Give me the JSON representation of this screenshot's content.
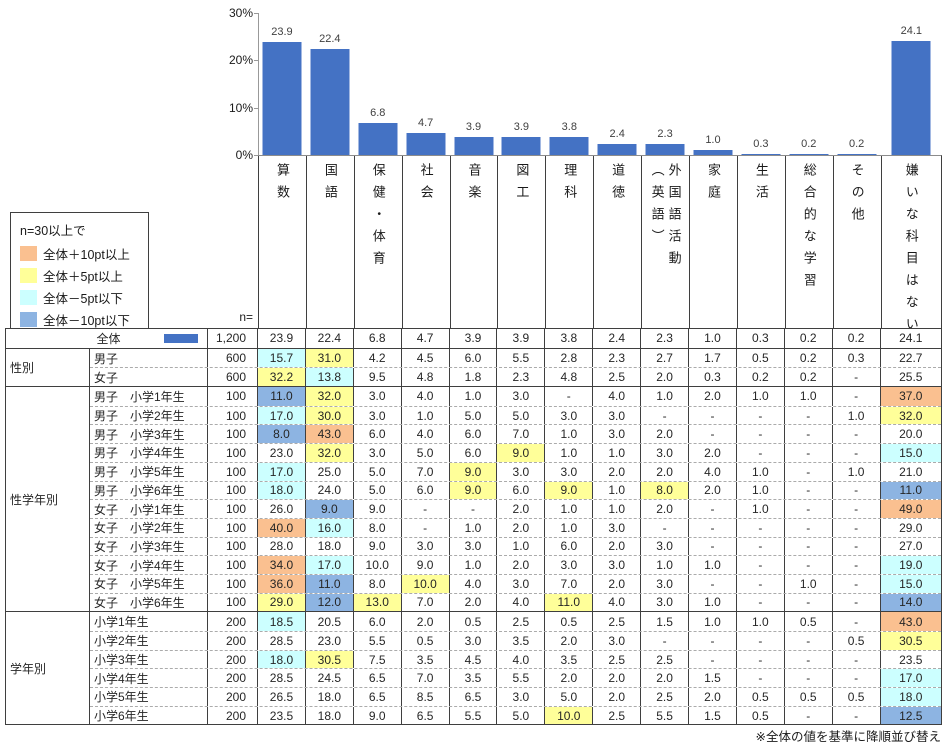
{
  "chart_data": {
    "type": "bar",
    "title": "",
    "categories": [
      "算数",
      "国語",
      "保健・体育",
      "社会",
      "音楽",
      "図工",
      "理科",
      "道徳",
      "外国語活動\n（英語）",
      "家庭",
      "生活",
      "総合的な学習",
      "その他",
      "嫌いな科目はない"
    ],
    "values": [
      23.9,
      22.4,
      6.8,
      4.7,
      3.9,
      3.9,
      3.8,
      2.4,
      2.3,
      1.0,
      0.3,
      0.2,
      0.2,
      24.1
    ],
    "value_labels": [
      "23.9",
      "22.4",
      "6.8",
      "4.7",
      "3.9",
      "3.9",
      "3.8",
      "2.4",
      "2.3",
      "1.0",
      "0.3",
      "0.2",
      "0.2",
      "24.1"
    ],
    "yticks": [
      {
        "value": 30,
        "label": "30%"
      },
      {
        "value": 20,
        "label": "20%"
      },
      {
        "value": 10,
        "label": "10%"
      },
      {
        "value": 0,
        "label": "0%"
      }
    ],
    "ylim": [
      0,
      30
    ],
    "grid": false,
    "legend_position": "none",
    "bar_color": "#4472C4"
  },
  "legend": {
    "title": "n=30以上で",
    "items": [
      {
        "key": "plus10",
        "label": "全体＋10pt以上",
        "color": "#FAC090"
      },
      {
        "key": "plus5",
        "label": "全体＋5pt以上",
        "color": "#FFFF99"
      },
      {
        "key": "minus5",
        "label": "全体－5pt以下",
        "color": "#CCFFFF"
      },
      {
        "key": "minus10",
        "label": "全体－10pt以下",
        "color": "#8DB4E2"
      }
    ],
    "rules": {
      "plus10_pt": 10,
      "plus5_pt": 5,
      "minus5_pt": -5,
      "minus10_pt": -10
    }
  },
  "table": {
    "n_header": "n=",
    "overall": {
      "name": "全体",
      "n": "1,200",
      "values": [
        "23.9",
        "22.4",
        "6.8",
        "4.7",
        "3.9",
        "3.9",
        "3.8",
        "2.4",
        "2.3",
        "1.0",
        "0.3",
        "0.2",
        "0.2",
        "24.1"
      ]
    },
    "groups": [
      {
        "label": "性別",
        "rows": [
          {
            "name": "男子",
            "n": "600",
            "values": [
              "15.7",
              "31.0",
              "4.2",
              "4.5",
              "6.0",
              "5.5",
              "2.8",
              "2.3",
              "2.7",
              "1.7",
              "0.5",
              "0.2",
              "0.3",
              "22.7"
            ]
          },
          {
            "name": "女子",
            "n": "600",
            "values": [
              "32.2",
              "13.8",
              "9.5",
              "4.8",
              "1.8",
              "2.3",
              "4.8",
              "2.5",
              "2.0",
              "0.3",
              "0.2",
              "0.2",
              "-",
              "25.5"
            ]
          }
        ]
      },
      {
        "label": "性学年別",
        "rows": [
          {
            "name": "男子　小学1年生",
            "n": "100",
            "values": [
              "11.0",
              "32.0",
              "3.0",
              "4.0",
              "1.0",
              "3.0",
              "-",
              "4.0",
              "1.0",
              "2.0",
              "1.0",
              "1.0",
              "-",
              "37.0"
            ]
          },
          {
            "name": "男子　小学2年生",
            "n": "100",
            "values": [
              "17.0",
              "30.0",
              "3.0",
              "1.0",
              "5.0",
              "5.0",
              "3.0",
              "3.0",
              "-",
              "-",
              "-",
              "-",
              "1.0",
              "32.0"
            ]
          },
          {
            "name": "男子　小学3年生",
            "n": "100",
            "values": [
              "8.0",
              "43.0",
              "6.0",
              "4.0",
              "6.0",
              "7.0",
              "1.0",
              "3.0",
              "2.0",
              "-",
              "-",
              "-",
              "-",
              "20.0"
            ]
          },
          {
            "name": "男子　小学4年生",
            "n": "100",
            "values": [
              "23.0",
              "32.0",
              "3.0",
              "5.0",
              "6.0",
              "9.0",
              "1.0",
              "1.0",
              "3.0",
              "2.0",
              "-",
              "-",
              "-",
              "15.0"
            ]
          },
          {
            "name": "男子　小学5年生",
            "n": "100",
            "values": [
              "17.0",
              "25.0",
              "5.0",
              "7.0",
              "9.0",
              "3.0",
              "3.0",
              "2.0",
              "2.0",
              "4.0",
              "1.0",
              "-",
              "1.0",
              "21.0"
            ]
          },
          {
            "name": "男子　小学6年生",
            "n": "100",
            "values": [
              "18.0",
              "24.0",
              "5.0",
              "6.0",
              "9.0",
              "6.0",
              "9.0",
              "1.0",
              "8.0",
              "2.0",
              "1.0",
              "-",
              "-",
              "11.0"
            ]
          },
          {
            "name": "女子　小学1年生",
            "n": "100",
            "values": [
              "26.0",
              "9.0",
              "9.0",
              "-",
              "-",
              "2.0",
              "1.0",
              "1.0",
              "2.0",
              "-",
              "1.0",
              "-",
              "-",
              "49.0"
            ]
          },
          {
            "name": "女子　小学2年生",
            "n": "100",
            "values": [
              "40.0",
              "16.0",
              "8.0",
              "-",
              "1.0",
              "2.0",
              "1.0",
              "3.0",
              "-",
              "-",
              "-",
              "-",
              "-",
              "29.0"
            ]
          },
          {
            "name": "女子　小学3年生",
            "n": "100",
            "values": [
              "28.0",
              "18.0",
              "9.0",
              "3.0",
              "3.0",
              "1.0",
              "6.0",
              "2.0",
              "3.0",
              "-",
              "-",
              "-",
              "-",
              "27.0"
            ]
          },
          {
            "name": "女子　小学4年生",
            "n": "100",
            "values": [
              "34.0",
              "17.0",
              "10.0",
              "9.0",
              "1.0",
              "2.0",
              "3.0",
              "3.0",
              "1.0",
              "1.0",
              "-",
              "-",
              "-",
              "19.0"
            ]
          },
          {
            "name": "女子　小学5年生",
            "n": "100",
            "values": [
              "36.0",
              "11.0",
              "8.0",
              "10.0",
              "4.0",
              "3.0",
              "7.0",
              "2.0",
              "3.0",
              "-",
              "-",
              "1.0",
              "-",
              "15.0"
            ]
          },
          {
            "name": "女子　小学6年生",
            "n": "100",
            "values": [
              "29.0",
              "12.0",
              "13.0",
              "7.0",
              "2.0",
              "4.0",
              "11.0",
              "4.0",
              "3.0",
              "1.0",
              "-",
              "-",
              "-",
              "14.0"
            ]
          }
        ]
      },
      {
        "label": "学年別",
        "rows": [
          {
            "name": "小学1年生",
            "n": "200",
            "values": [
              "18.5",
              "20.5",
              "6.0",
              "2.0",
              "0.5",
              "2.5",
              "0.5",
              "2.5",
              "1.5",
              "1.0",
              "1.0",
              "0.5",
              "-",
              "43.0"
            ]
          },
          {
            "name": "小学2年生",
            "n": "200",
            "values": [
              "28.5",
              "23.0",
              "5.5",
              "0.5",
              "3.0",
              "3.5",
              "2.0",
              "3.0",
              "-",
              "-",
              "-",
              "-",
              "0.5",
              "30.5"
            ]
          },
          {
            "name": "小学3年生",
            "n": "200",
            "values": [
              "18.0",
              "30.5",
              "7.5",
              "3.5",
              "4.5",
              "4.0",
              "3.5",
              "2.5",
              "2.5",
              "-",
              "-",
              "-",
              "-",
              "23.5"
            ]
          },
          {
            "name": "小学4年生",
            "n": "200",
            "values": [
              "28.5",
              "24.5",
              "6.5",
              "7.0",
              "3.5",
              "5.5",
              "2.0",
              "2.0",
              "2.0",
              "1.5",
              "-",
              "-",
              "-",
              "17.0"
            ]
          },
          {
            "name": "小学5年生",
            "n": "200",
            "values": [
              "26.5",
              "18.0",
              "6.5",
              "8.5",
              "6.5",
              "3.0",
              "5.0",
              "2.0",
              "2.5",
              "2.0",
              "0.5",
              "0.5",
              "0.5",
              "18.0"
            ]
          },
          {
            "name": "小学6年生",
            "n": "200",
            "values": [
              "23.5",
              "18.0",
              "9.0",
              "6.5",
              "5.5",
              "5.0",
              "10.0",
              "2.5",
              "5.5",
              "1.5",
              "0.5",
              "-",
              "-",
              "12.5"
            ]
          }
        ]
      }
    ]
  },
  "footnote": "※全体の値を基準に降順並び替え"
}
